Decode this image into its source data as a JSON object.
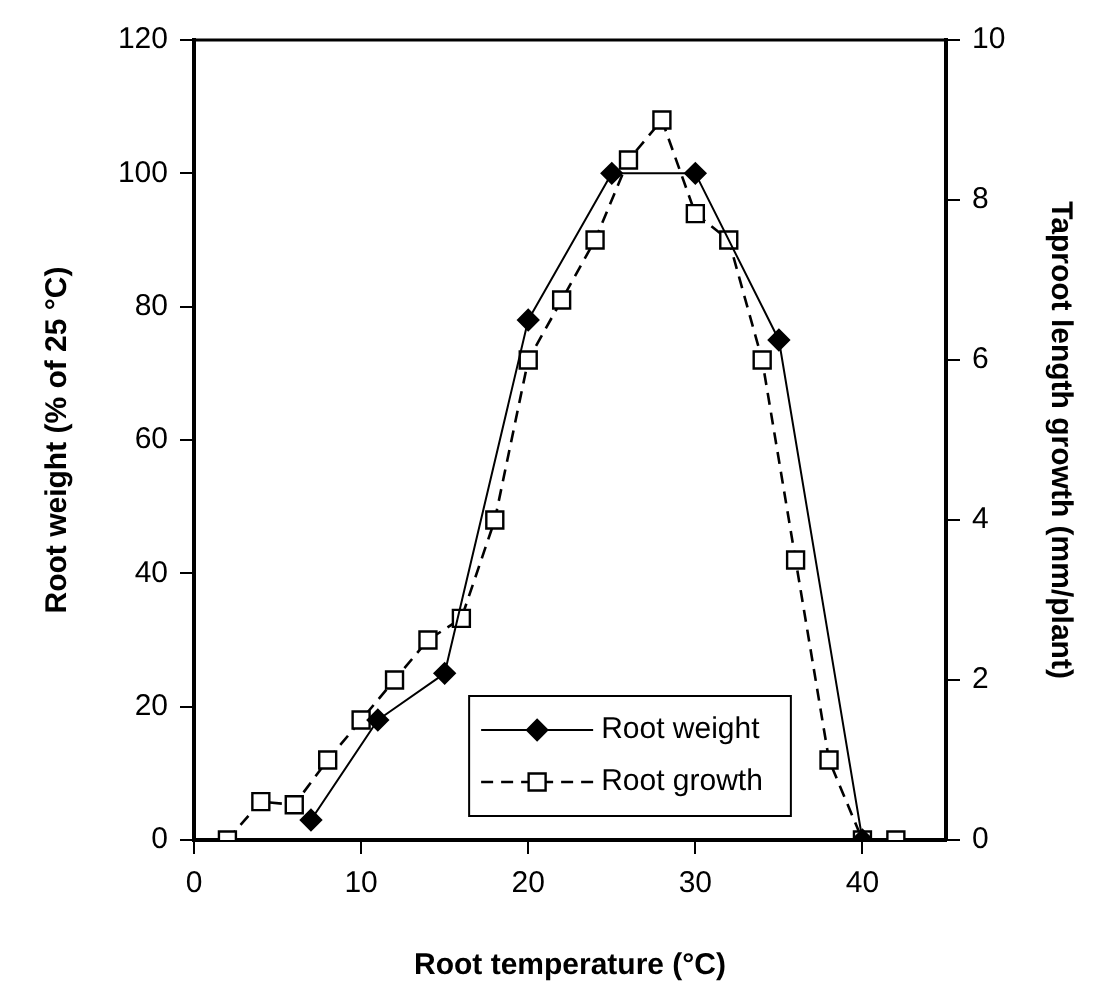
{
  "chart_data": {
    "type": "line",
    "xlabel": "Root temperature (°C)",
    "ylabel": "Root weight (% of 25 °C)",
    "y2label": "Taproot length growth (mm/plant)",
    "xlim": [
      0,
      45
    ],
    "xticks": [
      0,
      10,
      20,
      30,
      40
    ],
    "ylim": [
      0,
      120
    ],
    "yticks": [
      0,
      20,
      40,
      60,
      80,
      100,
      120
    ],
    "y2lim": [
      0,
      10
    ],
    "y2ticks": [
      0,
      2,
      4,
      6,
      8,
      10
    ],
    "grid": false,
    "legend": "bottom",
    "series": [
      {
        "name": "Root weight",
        "color": "#000000",
        "marker": "diamond",
        "line_style": "solid",
        "x": [
          7,
          11,
          15,
          20,
          25,
          30,
          35,
          40
        ],
        "values": [
          3,
          18,
          25,
          78,
          100,
          100,
          75,
          0
        ]
      },
      {
        "name": "Root growth",
        "color": "#000000",
        "marker": "square",
        "line_style": "dashed",
        "axis": "y2",
        "x": [
          2,
          4,
          6,
          8,
          10,
          12,
          14,
          16,
          18,
          20,
          22,
          24,
          26,
          28,
          30,
          32,
          34,
          36,
          38,
          40,
          42
        ],
        "values": [
          0,
          0.48,
          0.44,
          1.0,
          1.5,
          2.0,
          2.5,
          2.77,
          4.0,
          6.0,
          6.75,
          7.5,
          8.5,
          9.0,
          7.83,
          7.5,
          6.0,
          3.5,
          1.0,
          0,
          0
        ]
      }
    ]
  }
}
